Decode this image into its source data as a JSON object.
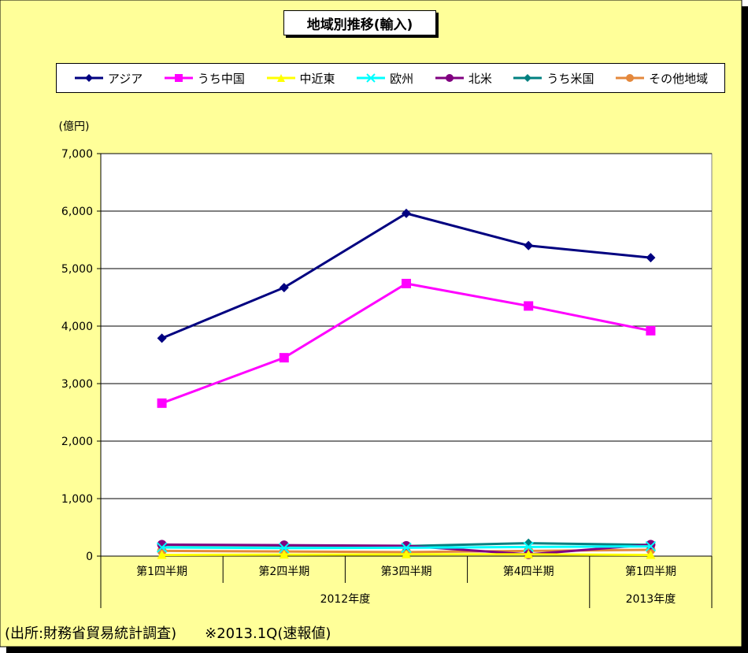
{
  "chart_data": {
    "type": "line",
    "title": "地域別推移(輸入)",
    "y_unit": "(億円)",
    "ylim": [
      0,
      7000
    ],
    "y_ticks": [
      "0",
      "1,000",
      "2,000",
      "3,000",
      "4,000",
      "5,000",
      "6,000",
      "7,000"
    ],
    "categories": [
      "第1四半期",
      "第2四半期",
      "第3四半期",
      "第4四半期",
      "第1四半期"
    ],
    "category_groups": [
      {
        "label": "2012年度",
        "span": 4
      },
      {
        "label": "2013年度",
        "span": 1
      }
    ],
    "series": [
      {
        "name": "アジア",
        "color": "#000080",
        "marker": "diamond",
        "values": [
          3790,
          4670,
          5960,
          5400,
          5190
        ]
      },
      {
        "name": "うち中国",
        "color": "#FF00FF",
        "marker": "square",
        "values": [
          2660,
          3450,
          4740,
          4350,
          3920
        ]
      },
      {
        "name": "中近東",
        "color": "#FFFF00",
        "marker": "triangle",
        "values": [
          20,
          25,
          30,
          30,
          20
        ]
      },
      {
        "name": "欧州",
        "color": "#00FFFF",
        "marker": "x",
        "values": [
          150,
          140,
          145,
          160,
          170
        ]
      },
      {
        "name": "北米",
        "color": "#800080",
        "marker": "circle",
        "values": [
          200,
          190,
          180,
          30,
          200
        ]
      },
      {
        "name": "うち米国",
        "color": "#008080",
        "marker": "diamond",
        "values": [
          195,
          185,
          175,
          225,
          195
        ]
      },
      {
        "name": "その他地域",
        "color": "#E4883C",
        "marker": "circle",
        "values": [
          90,
          80,
          70,
          90,
          110
        ]
      }
    ],
    "legend_position": "top",
    "grid": true
  },
  "footnote": "(出所:財務省貿易統計調査)　　※2013.1Q(速報値)",
  "colors": {
    "outer_bg": "#FFFF99",
    "plot_bg": "#FFFFFF",
    "grid": "#000000"
  }
}
